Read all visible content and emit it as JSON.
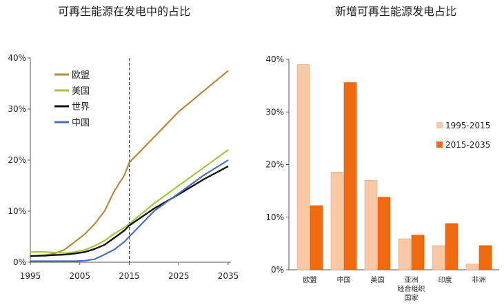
{
  "chart_data": [
    {
      "type": "line",
      "title": "可再生能源在发电中的占比",
      "xlabel": "",
      "ylabel": "",
      "xlim": [
        1995,
        2035
      ],
      "ylim": [
        0,
        40
      ],
      "x_ticks": [
        "1995",
        "2005",
        "2015",
        "2025",
        "2035"
      ],
      "y_ticks": [
        "0%",
        "10%",
        "20%",
        "30%",
        "40%"
      ],
      "vline_year": 2015,
      "legend_position": "top-left",
      "series": [
        {
          "name": "欧盟",
          "color": "#B8893A",
          "x": [
            1995,
            1998,
            2000,
            2002,
            2004,
            2006,
            2008,
            2010,
            2012,
            2014,
            2015,
            2020,
            2025,
            2030,
            2035
          ],
          "values": [
            1.2,
            1.4,
            1.7,
            2.5,
            4.0,
            5.5,
            7.5,
            10.0,
            14.0,
            17.0,
            19.5,
            24.5,
            29.5,
            33.5,
            37.5
          ]
        },
        {
          "name": "美国",
          "color": "#A4C639",
          "x": [
            1995,
            1998,
            2000,
            2002,
            2004,
            2006,
            2008,
            2010,
            2012,
            2014,
            2015,
            2020,
            2025,
            2030,
            2035
          ],
          "values": [
            2.0,
            2.0,
            1.9,
            1.8,
            2.0,
            2.4,
            3.2,
            4.2,
            5.6,
            6.8,
            7.5,
            11.5,
            15.0,
            18.5,
            22.0
          ]
        },
        {
          "name": "世界",
          "color": "#111111",
          "x": [
            1995,
            1998,
            2000,
            2002,
            2004,
            2006,
            2008,
            2010,
            2012,
            2014,
            2015,
            2020,
            2025,
            2030,
            2035
          ],
          "values": [
            1.2,
            1.3,
            1.4,
            1.5,
            1.7,
            2.0,
            2.6,
            3.4,
            4.8,
            6.2,
            7.2,
            10.5,
            13.3,
            16.2,
            18.8
          ]
        },
        {
          "name": "中国",
          "color": "#4A6FB5",
          "x": [
            1995,
            1998,
            2000,
            2002,
            2004,
            2006,
            2008,
            2010,
            2012,
            2014,
            2015,
            2020,
            2025,
            2030,
            2035
          ],
          "values": [
            0.2,
            0.2,
            0.2,
            0.2,
            0.2,
            0.3,
            0.6,
            1.5,
            2.5,
            4.0,
            5.0,
            10.0,
            13.5,
            17.0,
            20.0
          ]
        }
      ]
    },
    {
      "type": "bar",
      "title": "新增可再生能源发电占比",
      "xlabel": "",
      "ylabel": "",
      "ylim": [
        0,
        40
      ],
      "y_ticks": [
        "0%",
        "10%",
        "20%",
        "30%",
        "40%"
      ],
      "categories": [
        "欧盟",
        "中国",
        "美国",
        "亚洲 经合组织 国家",
        "印度",
        "非洲"
      ],
      "category_lines": [
        [
          "欧盟"
        ],
        [
          "中国"
        ],
        [
          "美国"
        ],
        [
          "亚洲",
          "经合组织",
          "国家"
        ],
        [
          "印度"
        ],
        [
          "非洲"
        ]
      ],
      "legend_position": "right",
      "series": [
        {
          "name": "1995-2015",
          "color": "#F9C9A6",
          "values": [
            39.0,
            18.6,
            17.0,
            5.9,
            4.6,
            1.1
          ]
        },
        {
          "name": "2015-2035",
          "color": "#F06A0F",
          "values": [
            12.2,
            35.6,
            13.8,
            6.6,
            8.8,
            4.6
          ]
        }
      ]
    }
  ]
}
